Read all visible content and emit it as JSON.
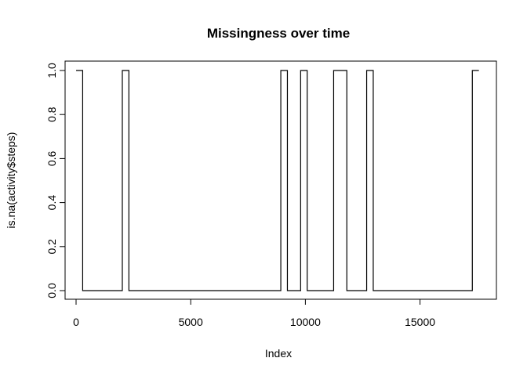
{
  "chart_data": {
    "type": "line",
    "title": "Missingness over time",
    "xlabel": "Index",
    "ylabel": "is.na(activity$steps)",
    "xlim": [
      0,
      17568
    ],
    "ylim": [
      0,
      1
    ],
    "x_ticks": [
      0,
      5000,
      10000,
      15000
    ],
    "x_tick_labels": [
      "0",
      "5000",
      "10000",
      "15000"
    ],
    "y_ticks": [
      0,
      0.2,
      0.4,
      0.6,
      0.8,
      1.0
    ],
    "y_tick_labels": [
      "0.0",
      "0.2",
      "0.4",
      "0.6",
      "0.8",
      "1.0"
    ],
    "grid": false,
    "step": true,
    "series": [
      {
        "x": [
          1,
          288,
          2017,
          2304,
          8929,
          9216,
          9793,
          10080,
          11233,
          11808,
          12673,
          12960,
          17281,
          17568
        ],
        "values": [
          1,
          0,
          1,
          0,
          1,
          0,
          1,
          0,
          1,
          0,
          1,
          0,
          1,
          1
        ]
      }
    ]
  }
}
